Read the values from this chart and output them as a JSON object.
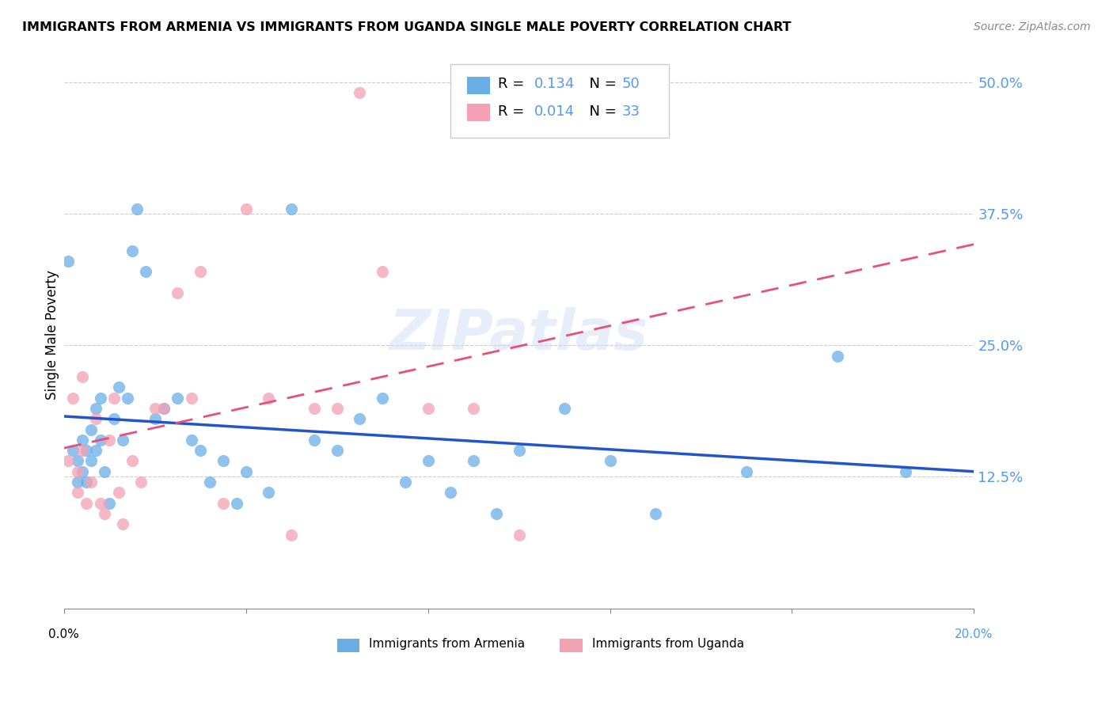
{
  "title": "IMMIGRANTS FROM ARMENIA VS IMMIGRANTS FROM UGANDA SINGLE MALE POVERTY CORRELATION CHART",
  "source": "Source: ZipAtlas.com",
  "ylabel": "Single Male Poverty",
  "ytick_labels": [
    "50.0%",
    "37.5%",
    "25.0%",
    "12.5%"
  ],
  "ytick_values": [
    0.5,
    0.375,
    0.25,
    0.125
  ],
  "xlim": [
    0.0,
    0.2
  ],
  "ylim": [
    0.0,
    0.52
  ],
  "armenia_color": "#6aaee6",
  "uganda_color": "#f4a0b5",
  "trendline_armenia_color": "#2255cc",
  "trendline_uganda_color": "#e8507a",
  "watermark": "ZIPatlas",
  "armenia_x": [
    0.001,
    0.002,
    0.003,
    0.003,
    0.004,
    0.004,
    0.005,
    0.005,
    0.006,
    0.006,
    0.007,
    0.007,
    0.008,
    0.008,
    0.009,
    0.01,
    0.011,
    0.012,
    0.013,
    0.014,
    0.015,
    0.016,
    0.018,
    0.02,
    0.022,
    0.025,
    0.028,
    0.03,
    0.032,
    0.035,
    0.038,
    0.04,
    0.045,
    0.05,
    0.055,
    0.06,
    0.065,
    0.07,
    0.075,
    0.08,
    0.085,
    0.09,
    0.095,
    0.1,
    0.11,
    0.12,
    0.13,
    0.15,
    0.17,
    0.185
  ],
  "armenia_y": [
    0.33,
    0.15,
    0.14,
    0.12,
    0.16,
    0.13,
    0.15,
    0.12,
    0.17,
    0.14,
    0.19,
    0.15,
    0.2,
    0.16,
    0.13,
    0.1,
    0.18,
    0.21,
    0.16,
    0.2,
    0.34,
    0.38,
    0.32,
    0.18,
    0.19,
    0.2,
    0.16,
    0.15,
    0.12,
    0.14,
    0.1,
    0.13,
    0.11,
    0.38,
    0.16,
    0.15,
    0.18,
    0.2,
    0.12,
    0.14,
    0.11,
    0.14,
    0.09,
    0.15,
    0.19,
    0.14,
    0.09,
    0.13,
    0.24,
    0.13
  ],
  "uganda_x": [
    0.001,
    0.002,
    0.003,
    0.003,
    0.004,
    0.004,
    0.005,
    0.006,
    0.007,
    0.008,
    0.009,
    0.01,
    0.011,
    0.012,
    0.013,
    0.015,
    0.017,
    0.02,
    0.022,
    0.025,
    0.028,
    0.03,
    0.035,
    0.04,
    0.045,
    0.05,
    0.055,
    0.06,
    0.065,
    0.07,
    0.08,
    0.09,
    0.1
  ],
  "uganda_y": [
    0.14,
    0.2,
    0.13,
    0.11,
    0.22,
    0.15,
    0.1,
    0.12,
    0.18,
    0.1,
    0.09,
    0.16,
    0.2,
    0.11,
    0.08,
    0.14,
    0.12,
    0.19,
    0.19,
    0.3,
    0.2,
    0.32,
    0.1,
    0.38,
    0.2,
    0.07,
    0.19,
    0.19,
    0.49,
    0.32,
    0.19,
    0.19,
    0.07
  ],
  "legend_label1": "R =  0.134   N =  50",
  "legend_label2": "R =  0.014   N =  33",
  "legend_r1": "R =  0.134",
  "legend_n1": "N =  50",
  "legend_r2": "R =  0.014",
  "legend_n2": "N =  33",
  "bottom_label1": "Immigrants from Armenia",
  "bottom_label2": "Immigrants from Uganda"
}
